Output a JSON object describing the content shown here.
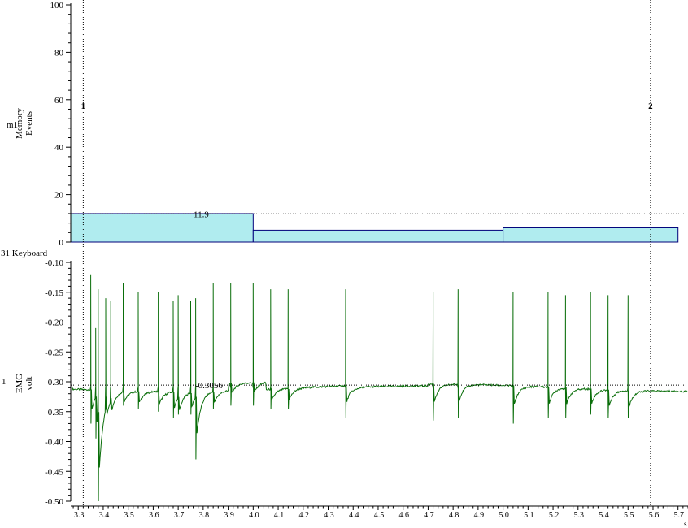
{
  "colors": {
    "bar_fill": "#b0ecef",
    "bar_stroke": "#00007a",
    "trace": "#0a6e0a",
    "axis": "#000000"
  },
  "chart_data": [
    {
      "type": "bar",
      "channel_label": "m1",
      "ylabel": [
        "Memory",
        "Events"
      ],
      "ylim": [
        0,
        100
      ],
      "yticks": [
        0,
        20,
        40,
        60,
        80,
        100
      ],
      "bins": [
        {
          "x0": 3.25,
          "x1": 4.0,
          "value": 12
        },
        {
          "x0": 4.0,
          "x1": 5.0,
          "value": 5
        },
        {
          "x0": 5.0,
          "x1": 5.7,
          "value": 6
        }
      ],
      "horizontal_cursor": {
        "value": 11.9,
        "label": "11.9"
      }
    },
    {
      "type": "line",
      "channel_label": "1",
      "ylabel": [
        "EMG",
        "volt"
      ],
      "ylim": [
        -0.5,
        -0.1
      ],
      "yticks": [
        "-0.10",
        "-0.15",
        "-0.20",
        "-0.25",
        "-0.30",
        "-0.35",
        "-0.40",
        "-0.45",
        "-0.50"
      ],
      "baseline": -0.31,
      "spikes": [
        {
          "x": 3.35,
          "peak": -0.12,
          "trough": -0.37
        },
        {
          "x": 3.37,
          "peak": -0.21,
          "trough": -0.395
        },
        {
          "x": 3.38,
          "peak": -0.145,
          "trough": -0.5
        },
        {
          "x": 3.41,
          "peak": -0.16,
          "trough": -0.34
        },
        {
          "x": 3.43,
          "peak": -0.165,
          "trough": -0.345
        },
        {
          "x": 3.48,
          "peak": -0.135,
          "trough": -0.34
        },
        {
          "x": 3.54,
          "peak": -0.15,
          "trough": -0.345
        },
        {
          "x": 3.62,
          "peak": -0.15,
          "trough": -0.35
        },
        {
          "x": 3.68,
          "peak": -0.165,
          "trough": -0.36
        },
        {
          "x": 3.7,
          "peak": -0.155,
          "trough": -0.355
        },
        {
          "x": 3.75,
          "peak": -0.165,
          "trough": -0.355
        },
        {
          "x": 3.77,
          "peak": -0.16,
          "trough": -0.43
        },
        {
          "x": 3.84,
          "peak": -0.135,
          "trough": -0.345
        },
        {
          "x": 3.91,
          "peak": -0.135,
          "trough": -0.34
        },
        {
          "x": 4.0,
          "peak": -0.135,
          "trough": -0.34
        },
        {
          "x": 4.07,
          "peak": -0.145,
          "trough": -0.345
        },
        {
          "x": 4.14,
          "peak": -0.145,
          "trough": -0.345
        },
        {
          "x": 4.37,
          "peak": -0.145,
          "trough": -0.36
        },
        {
          "x": 4.72,
          "peak": -0.15,
          "trough": -0.365
        },
        {
          "x": 4.82,
          "peak": -0.145,
          "trough": -0.36
        },
        {
          "x": 5.04,
          "peak": -0.15,
          "trough": -0.37
        },
        {
          "x": 5.18,
          "peak": -0.15,
          "trough": -0.36
        },
        {
          "x": 5.25,
          "peak": -0.155,
          "trough": -0.36
        },
        {
          "x": 5.35,
          "peak": -0.15,
          "trough": -0.355
        },
        {
          "x": 5.42,
          "peak": -0.155,
          "trough": -0.36
        },
        {
          "x": 5.5,
          "peak": -0.155,
          "trough": -0.36
        }
      ],
      "horizontal_cursor": {
        "value": -0.3056,
        "label": "-0.3056"
      }
    }
  ],
  "x_axis": {
    "range": [
      3.27,
      5.74
    ],
    "ticks": [
      "3.3",
      "3.4",
      "3.5",
      "3.6",
      "3.7",
      "3.8",
      "3.9",
      "4.0",
      "4.1",
      "4.2",
      "4.3",
      "4.4",
      "4.5",
      "4.6",
      "4.7",
      "4.8",
      "4.9",
      "5.0",
      "5.1",
      "5.2",
      "5.3",
      "5.4",
      "5.5",
      "5.6",
      "5.7"
    ],
    "unit": "s"
  },
  "vertical_cursors": [
    {
      "label": "1",
      "x": 3.32
    },
    {
      "label": "2",
      "x": 5.59
    }
  ],
  "channel_labels": {
    "upper": "m1",
    "divider": "31 Keyboard",
    "lower": "1"
  }
}
